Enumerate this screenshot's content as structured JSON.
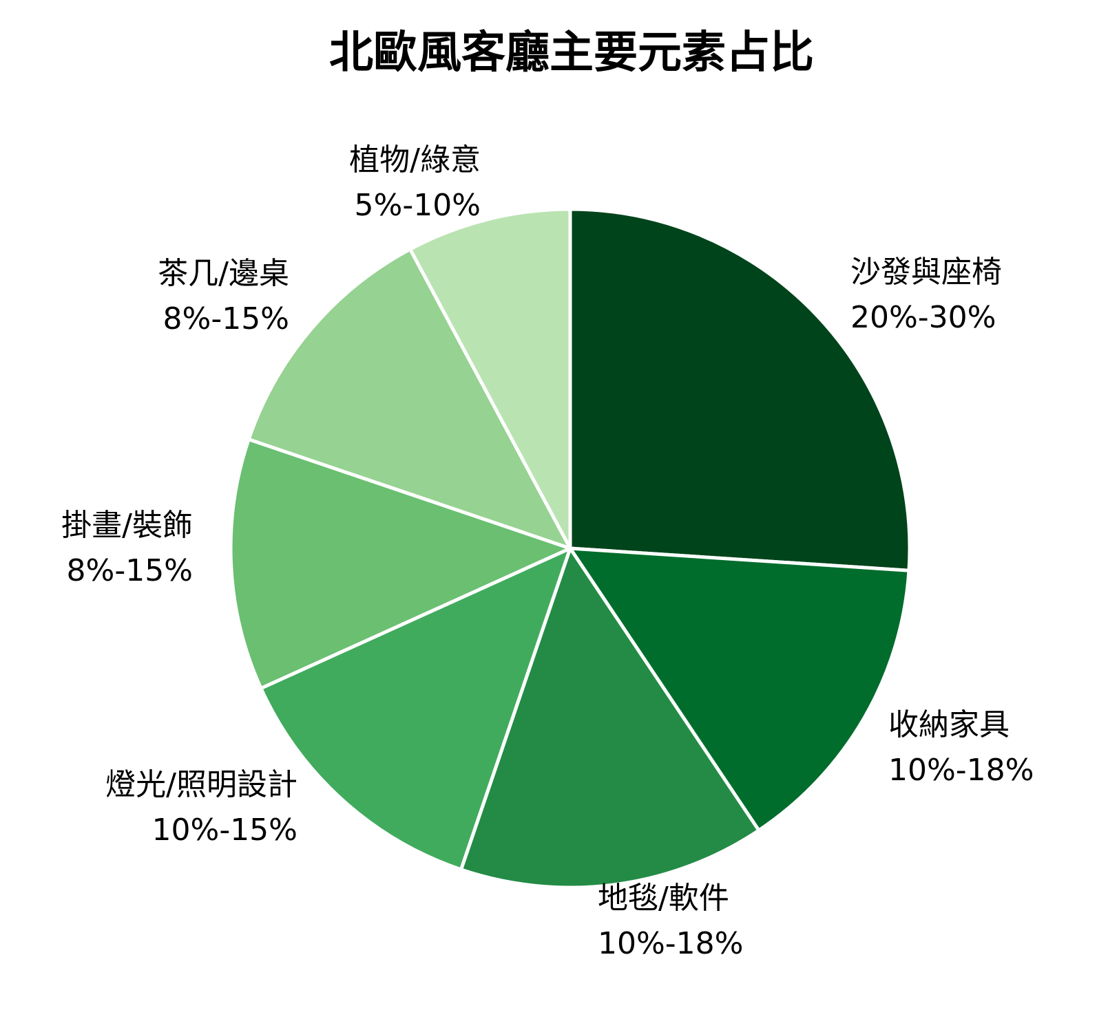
{
  "chart_data": {
    "type": "pie",
    "title": "北歐風客廳主要元素占比",
    "start_angle_deg": 0,
    "direction": "clockwise",
    "slices": [
      {
        "name": "沙發與座椅",
        "range": "20%-30%",
        "value": 25,
        "color": "#00441b"
      },
      {
        "name": "收納家具",
        "range": "10%-18%",
        "value": 14,
        "color": "#006d2c"
      },
      {
        "name": "地毯/軟件",
        "range": "10%-18%",
        "value": 14,
        "color": "#238b45"
      },
      {
        "name": "燈光/照明設計",
        "range": "10%-15%",
        "value": 12.5,
        "color": "#41ab5d"
      },
      {
        "name": "掛畫/裝飾",
        "range": "8%-15%",
        "value": 11.5,
        "color": "#6abf71"
      },
      {
        "name": "茶几/邊桌",
        "range": "8%-15%",
        "value": 11.5,
        "color": "#96d291"
      },
      {
        "name": "植物/綠意",
        "range": "5%-10%",
        "value": 7.5,
        "color": "#bae3b2"
      }
    ]
  }
}
